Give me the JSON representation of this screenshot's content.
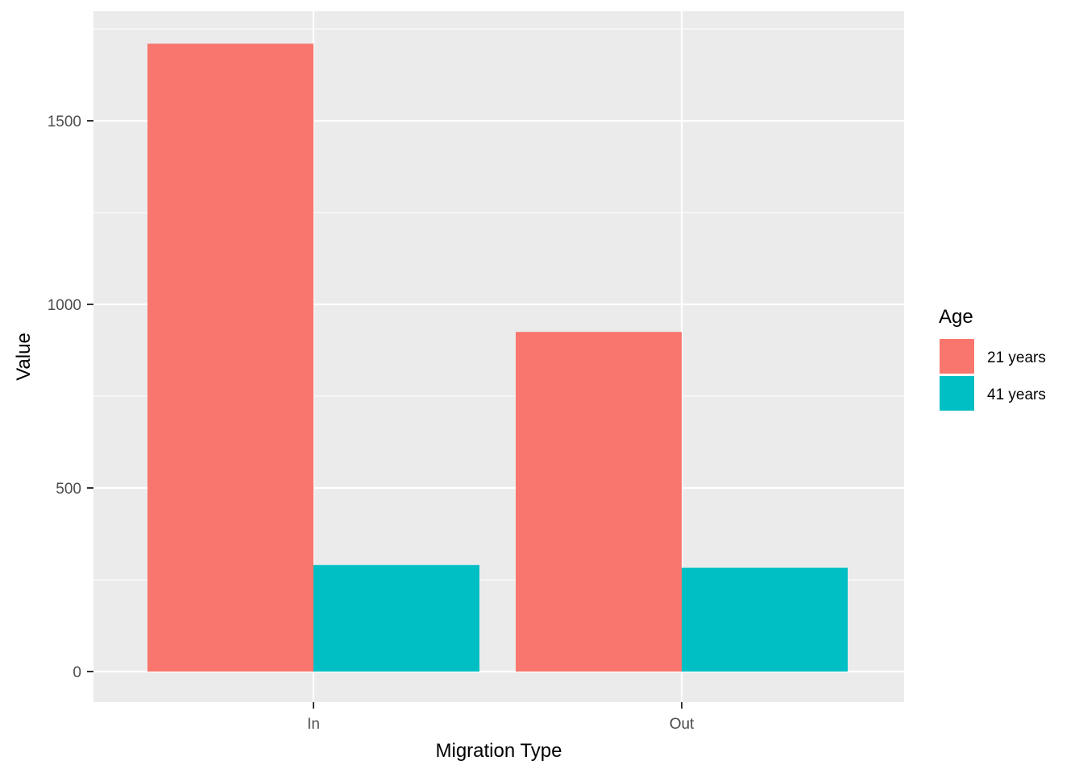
{
  "chart_data": {
    "type": "bar",
    "categories": [
      "In",
      "Out"
    ],
    "series": [
      {
        "name": "21 years",
        "values": [
          1710,
          925
        ],
        "color": "#F8766D"
      },
      {
        "name": "41 years",
        "values": [
          290,
          283
        ],
        "color": "#00BFC4"
      }
    ],
    "xlabel": "Migration Type",
    "ylabel": "Value",
    "ylim": [
      -85,
      1795
    ],
    "yticks": [
      0,
      500,
      1000,
      1500
    ],
    "ytick_labels": [
      "0",
      "500",
      "1000",
      "1500"
    ],
    "grid": true,
    "legend": {
      "title": "Age",
      "position": "right"
    },
    "panel_color": "#EBEBEB",
    "grid_color": "#FFFFFF"
  }
}
